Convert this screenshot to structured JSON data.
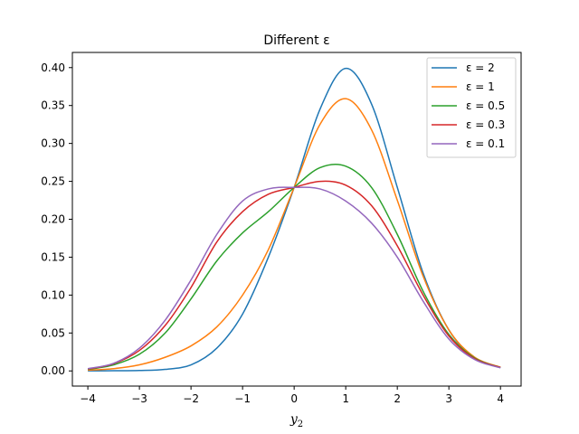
{
  "chart_data": {
    "type": "line",
    "title": "Different ε",
    "xlabel": "y",
    "xlabel_subscript": "2",
    "ylabel": "",
    "xlim": [
      -4.3,
      4.4
    ],
    "ylim": [
      -0.02,
      0.42
    ],
    "xticks": [
      -4,
      -3,
      -2,
      -1,
      0,
      1,
      2,
      3,
      4
    ],
    "xtick_labels": [
      "−4",
      "−3",
      "−2",
      "−1",
      "0",
      "1",
      "2",
      "3",
      "4"
    ],
    "yticks": [
      0.0,
      0.05,
      0.1,
      0.15,
      0.2,
      0.25,
      0.3,
      0.35,
      0.4
    ],
    "ytick_labels": [
      "0.00",
      "0.05",
      "0.10",
      "0.15",
      "0.20",
      "0.25",
      "0.30",
      "0.35",
      "0.40"
    ],
    "grid": false,
    "legend_position": "top-right",
    "x": [
      -4,
      -3.5,
      -3,
      -2.5,
      -2,
      -1.5,
      -1,
      -0.5,
      0,
      0.5,
      1,
      1.5,
      2,
      2.5,
      3,
      3.5,
      4
    ],
    "series": [
      {
        "name": "ε = 2",
        "color": "#1f77b4",
        "values": [
          0.0001,
          0.0002,
          0.0005,
          0.002,
          0.008,
          0.03,
          0.075,
          0.15,
          0.242,
          0.345,
          0.399,
          0.352,
          0.242,
          0.129,
          0.054,
          0.0175,
          0.0045
        ]
      },
      {
        "name": "ε = 1",
        "color": "#ff7f0e",
        "values": [
          0.001,
          0.003,
          0.008,
          0.018,
          0.033,
          0.058,
          0.1,
          0.16,
          0.242,
          0.325,
          0.359,
          0.318,
          0.225,
          0.125,
          0.054,
          0.018,
          0.005
        ]
      },
      {
        "name": "ε = 0.5",
        "color": "#2ca02c",
        "values": [
          0.002,
          0.008,
          0.022,
          0.05,
          0.095,
          0.145,
          0.182,
          0.21,
          0.242,
          0.268,
          0.27,
          0.242,
          0.18,
          0.105,
          0.048,
          0.017,
          0.0045
        ]
      },
      {
        "name": "ε = 0.3",
        "color": "#d62728",
        "values": [
          0.0025,
          0.0095,
          0.027,
          0.06,
          0.11,
          0.17,
          0.21,
          0.233,
          0.242,
          0.25,
          0.245,
          0.218,
          0.165,
          0.1,
          0.046,
          0.016,
          0.0045
        ]
      },
      {
        "name": "ε = 0.1",
        "color": "#9467bd",
        "values": [
          0.003,
          0.01,
          0.03,
          0.067,
          0.12,
          0.18,
          0.224,
          0.24,
          0.242,
          0.24,
          0.224,
          0.195,
          0.15,
          0.092,
          0.042,
          0.015,
          0.004
        ]
      }
    ]
  }
}
